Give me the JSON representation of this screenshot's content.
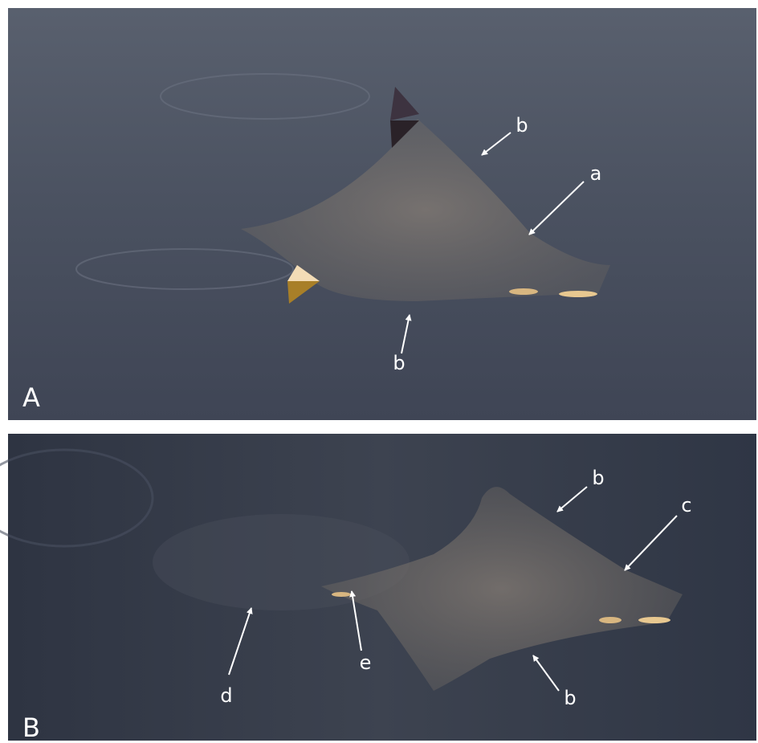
{
  "panels": [
    {
      "label": "A",
      "annotations": [
        "b",
        "a",
        "b"
      ]
    },
    {
      "label": "B",
      "annotations": [
        "b",
        "c",
        "d",
        "e",
        "b"
      ]
    }
  ]
}
